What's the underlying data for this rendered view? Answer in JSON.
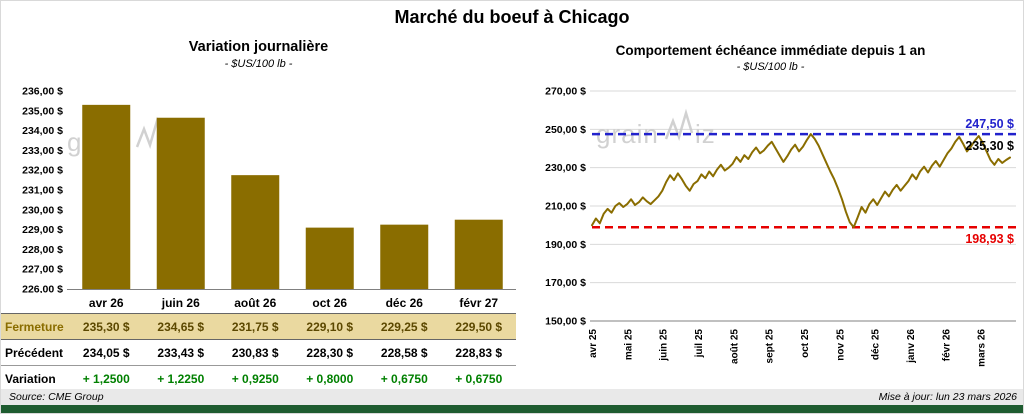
{
  "page": {
    "title": "Marché du boeuf à Chicago",
    "source": "Source: CME Group",
    "updated": "Mise à jour: lun 23 mars 2026",
    "watermark": "grainwiz"
  },
  "colors": {
    "bar": "#8a6d00",
    "line": "#8a6d00",
    "max_line": "#2222cc",
    "min_line": "#e60000",
    "variation_text": "#008000",
    "fermeture_bg": "#ead9a0",
    "fermeture_label": "#8a6d00",
    "fermeture_value": "#5c4800",
    "footer_bar": "#1e5c30",
    "grid": "#d9d9d9",
    "axis": "#808080",
    "watermark": "#c9c9c9"
  },
  "chart_data": [
    {
      "type": "bar",
      "title": "Variation journalière",
      "subtitle": "- $US/100 lb -",
      "categories": [
        "avr 26",
        "juin 26",
        "août 26",
        "oct 26",
        "déc 26",
        "févr 27"
      ],
      "values": [
        235.3,
        234.65,
        231.75,
        229.1,
        229.25,
        229.5
      ],
      "ylim": [
        226,
        236
      ],
      "ytick_step": 1,
      "ytick_labels": [
        "236,00 $",
        "235,00 $",
        "234,00 $",
        "233,00 $",
        "232,00 $",
        "231,00 $",
        "230,00 $",
        "229,00 $",
        "228,00 $",
        "227,00 $",
        "226,00 $"
      ],
      "grid": false,
      "legend": "none"
    },
    {
      "type": "line",
      "title": "Comportement échéance immédiate depuis 1 an",
      "subtitle": "- $US/100 lb -",
      "x_labels": [
        "avr 25",
        "mai 25",
        "juin 25",
        "juil 25",
        "août 25",
        "sept 25",
        "oct 25",
        "nov 25",
        "déc 25",
        "janv 26",
        "févr 26",
        "mars 26"
      ],
      "values": [
        200.0,
        203.5,
        201.0,
        206.0,
        208.5,
        206.5,
        210.0,
        211.5,
        209.5,
        211.0,
        213.5,
        210.5,
        212.0,
        214.5,
        212.5,
        211.0,
        213.0,
        215.0,
        218.0,
        222.5,
        226.0,
        223.5,
        227.0,
        224.0,
        220.5,
        218.0,
        221.5,
        223.0,
        226.5,
        224.5,
        228.0,
        225.5,
        229.0,
        231.5,
        228.5,
        230.0,
        232.0,
        235.5,
        233.0,
        236.5,
        234.5,
        238.0,
        240.5,
        237.5,
        239.0,
        241.5,
        243.5,
        240.0,
        236.5,
        233.0,
        236.0,
        239.5,
        242.0,
        238.5,
        241.0,
        244.5,
        247.5,
        245.0,
        241.5,
        237.0,
        232.5,
        228.0,
        224.0,
        219.0,
        213.5,
        207.0,
        201.5,
        198.93,
        204.0,
        209.5,
        206.5,
        211.0,
        213.5,
        210.5,
        214.0,
        217.5,
        215.0,
        218.5,
        221.0,
        218.0,
        220.5,
        223.0,
        226.5,
        224.0,
        228.0,
        230.5,
        227.5,
        231.0,
        233.5,
        230.5,
        234.0,
        237.5,
        240.0,
        243.5,
        246.0,
        242.5,
        238.5,
        241.0,
        244.0,
        246.5,
        243.0,
        238.5,
        234.0,
        231.5,
        234.5,
        232.5,
        234.0,
        235.3
      ],
      "ylim": [
        150,
        270
      ],
      "ytick_step": 20,
      "ytick_labels": [
        "270,00 $",
        "250,00 $",
        "230,00 $",
        "210,00 $",
        "190,00 $",
        "170,00 $",
        "150,00 $"
      ],
      "grid": true,
      "legend": "none",
      "annotations": {
        "max": {
          "value": 247.5,
          "label": "247,50 $"
        },
        "last": {
          "value": 235.3,
          "label": "235,30 $"
        },
        "min": {
          "value": 198.93,
          "label": "198,93 $"
        }
      }
    }
  ],
  "table": {
    "rows": [
      {
        "label": "Fermeture",
        "values": [
          "235,30 $",
          "234,65 $",
          "231,75 $",
          "229,10 $",
          "229,25 $",
          "229,50 $"
        ]
      },
      {
        "label": "Précédent",
        "values": [
          "234,05 $",
          "233,43 $",
          "230,83 $",
          "228,30 $",
          "228,58 $",
          "228,83 $"
        ]
      },
      {
        "label": "Variation",
        "values": [
          "+ 1,2500",
          "+ 1,2250",
          "+ 0,9250",
          "+ 0,8000",
          "+ 0,6750",
          "+ 0,6750"
        ]
      }
    ]
  }
}
